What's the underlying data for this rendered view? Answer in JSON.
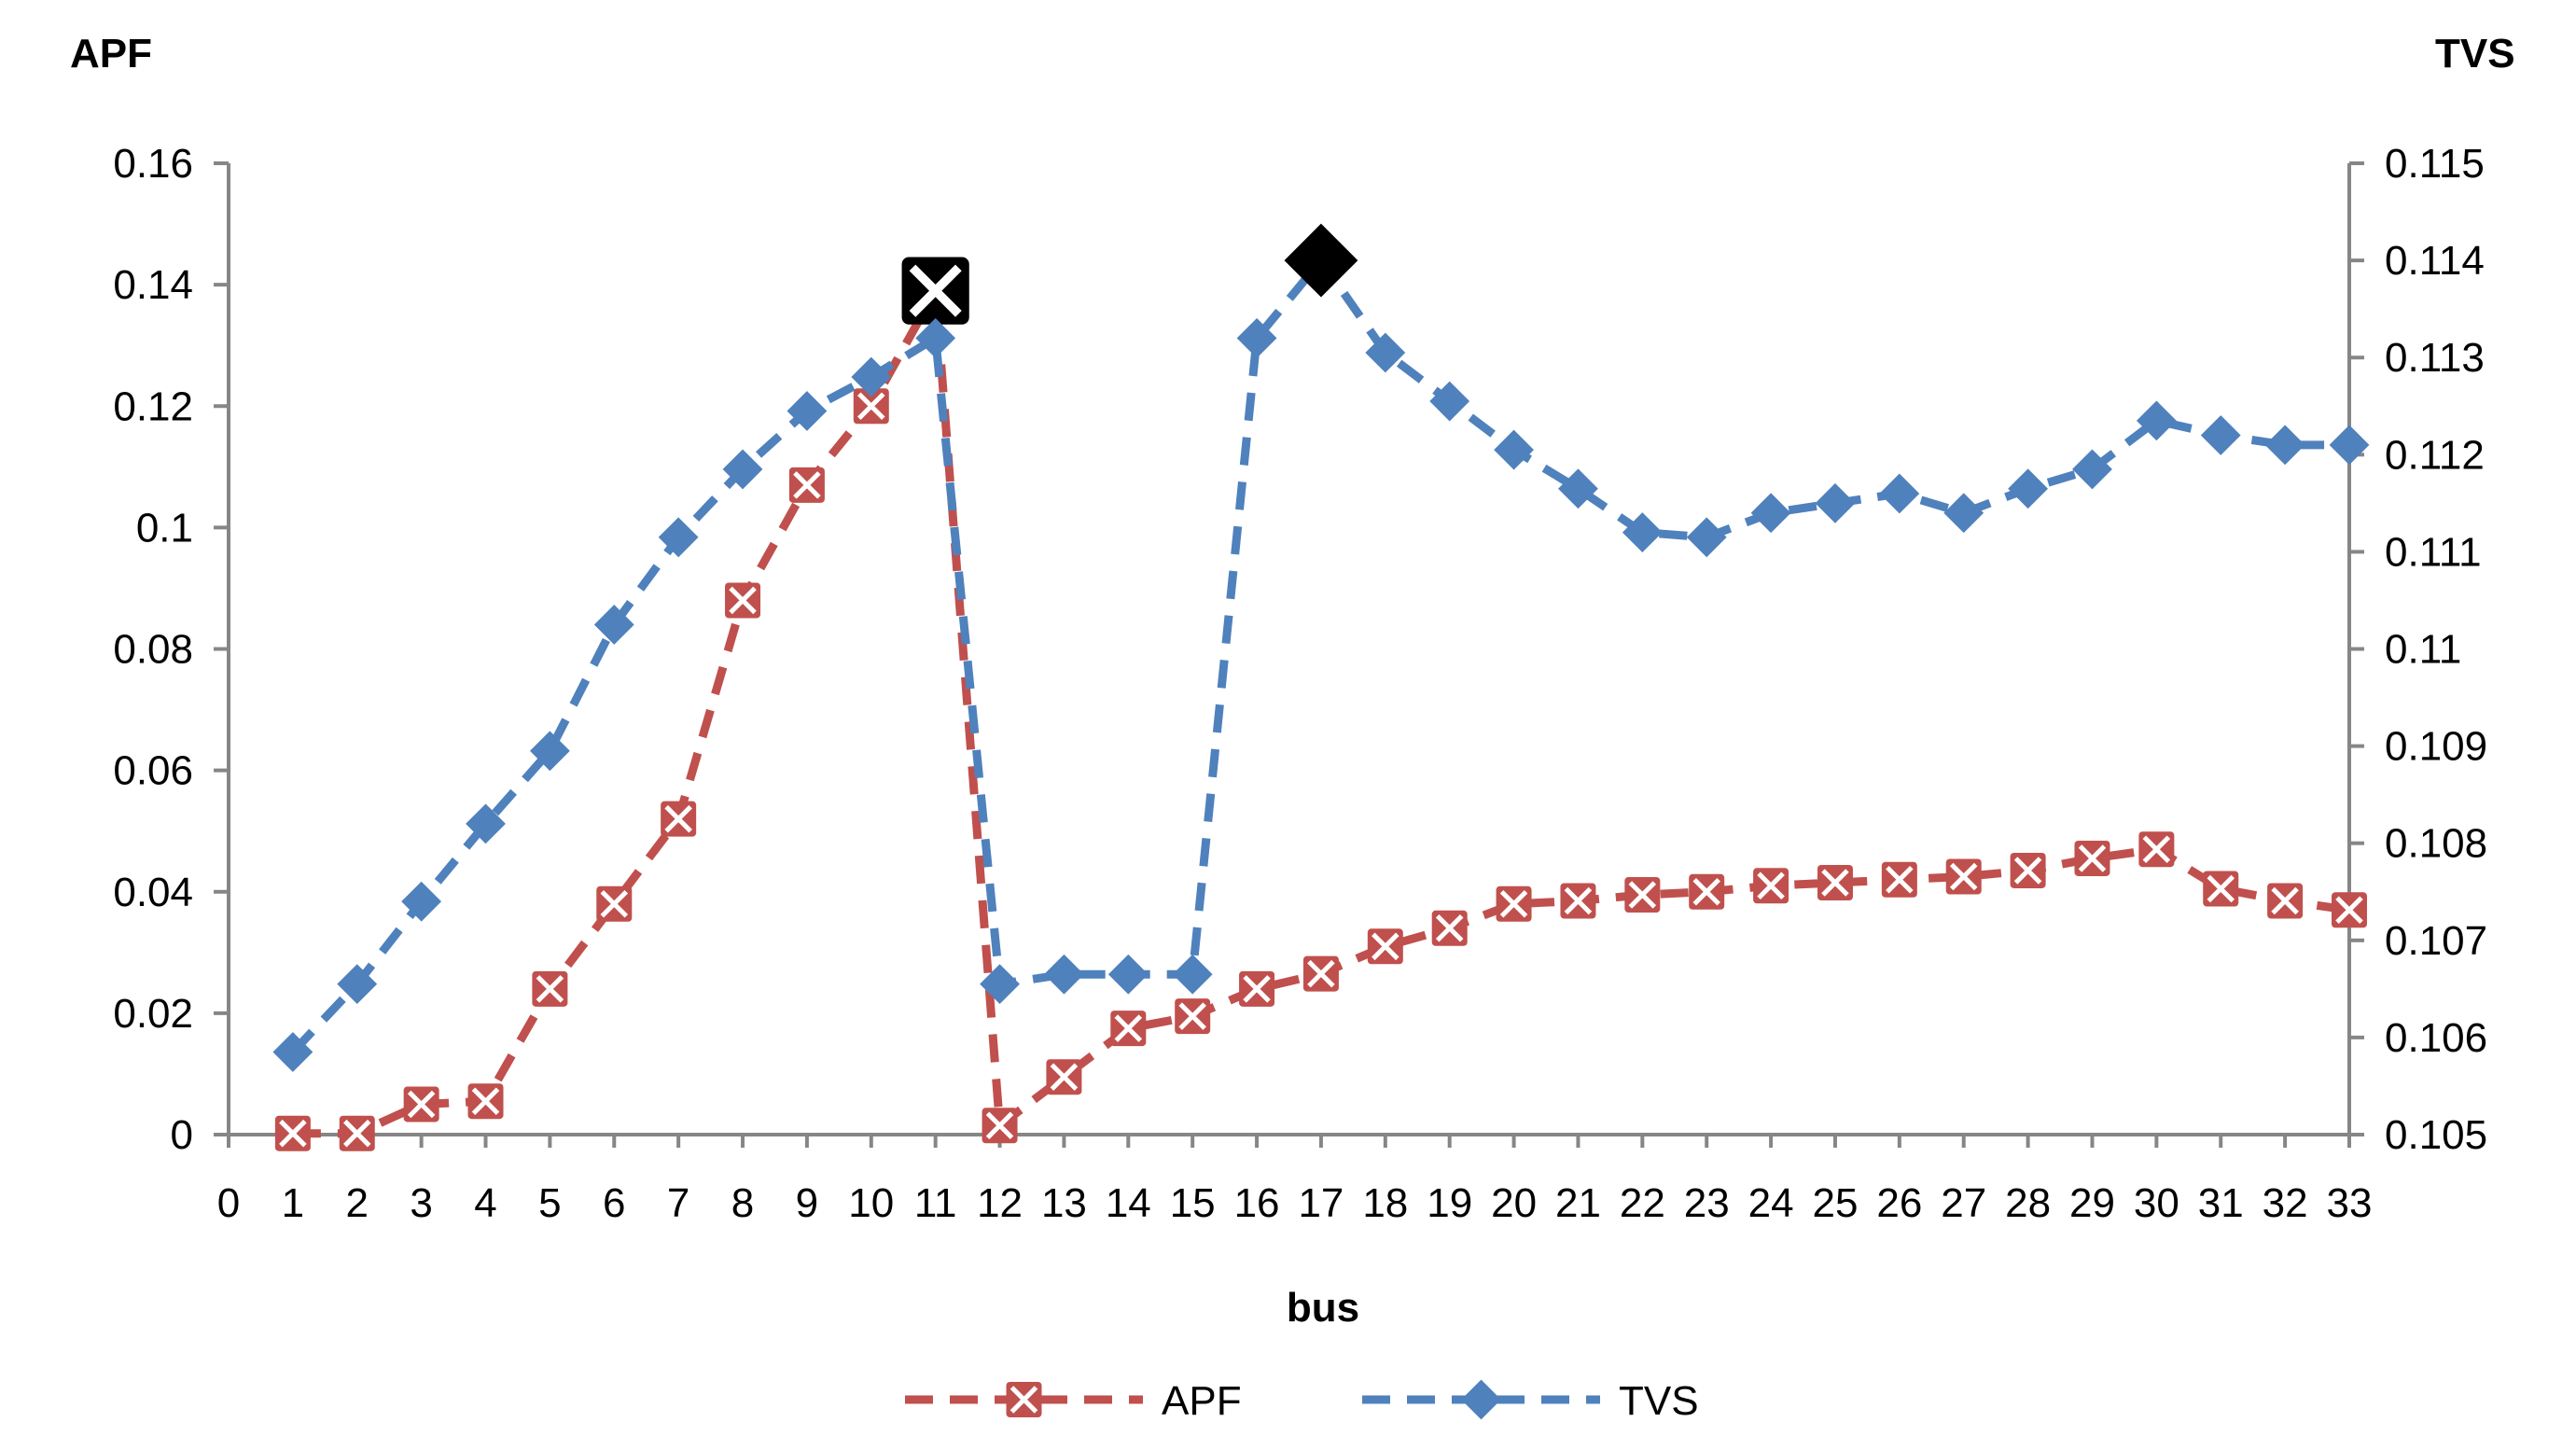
{
  "chart_data": {
    "type": "line",
    "title": "",
    "xlabel": "bus",
    "ylabel_left": "APF",
    "ylabel_right": "TVS",
    "x_ticks": [
      0,
      1,
      2,
      3,
      4,
      5,
      6,
      7,
      8,
      9,
      10,
      11,
      12,
      13,
      14,
      15,
      16,
      17,
      18,
      19,
      20,
      21,
      22,
      23,
      24,
      25,
      26,
      27,
      28,
      29,
      30,
      31,
      32,
      33
    ],
    "xlim": [
      0,
      33
    ],
    "ylim_left": [
      0,
      0.16
    ],
    "yticks_left": [
      "0",
      "0.02",
      "0.04",
      "0.06",
      "0.08",
      "0.1",
      "0.12",
      "0.14",
      "0.16"
    ],
    "ylim_right": [
      0.105,
      0.115
    ],
    "yticks_right": [
      "0.105",
      "0.106",
      "0.107",
      "0.108",
      "0.109",
      "0.11",
      "0.111",
      "0.112",
      "0.113",
      "0.114",
      "0.115"
    ],
    "grid": false,
    "legend_position": "bottom",
    "series": [
      {
        "name": "APF",
        "axis": "left",
        "color": "#C0504D",
        "marker": "x-square",
        "line_style": "dashed",
        "x": [
          1,
          2,
          3,
          4,
          5,
          6,
          7,
          8,
          9,
          10,
          11,
          12,
          13,
          14,
          15,
          16,
          17,
          18,
          19,
          20,
          21,
          22,
          23,
          24,
          25,
          26,
          27,
          28,
          29,
          30,
          31,
          32,
          33
        ],
        "values": [
          0.0002,
          0.0002,
          0.005,
          0.0055,
          0.024,
          0.038,
          0.052,
          0.088,
          0.107,
          0.12,
          0.139,
          0.0015,
          0.0095,
          0.0175,
          0.0195,
          0.024,
          0.0265,
          0.031,
          0.034,
          0.038,
          0.0385,
          0.0395,
          0.04,
          0.041,
          0.0415,
          0.042,
          0.0425,
          0.0435,
          0.0455,
          0.047,
          0.0405,
          0.0385,
          0.037
        ],
        "highlight_index": 10
      },
      {
        "name": "TVS",
        "axis": "right",
        "color": "#4F81BD",
        "marker": "diamond",
        "line_style": "dashed",
        "x": [
          1,
          2,
          3,
          4,
          5,
          6,
          7,
          8,
          9,
          10,
          11,
          12,
          13,
          14,
          15,
          16,
          17,
          18,
          19,
          20,
          21,
          22,
          23,
          24,
          25,
          26,
          27,
          28,
          29,
          30,
          31,
          32,
          33
        ],
        "values": [
          0.10585,
          0.10655,
          0.1074,
          0.1082,
          0.10895,
          0.11025,
          0.11115,
          0.11185,
          0.11245,
          0.1128,
          0.1132,
          0.10655,
          0.10665,
          0.10665,
          0.10665,
          0.1132,
          0.114,
          0.11305,
          0.11255,
          0.11205,
          0.11165,
          0.1112,
          0.11115,
          0.1114,
          0.1115,
          0.1116,
          0.1114,
          0.11165,
          0.11185,
          0.11235,
          0.1122,
          0.1121,
          0.1121
        ],
        "highlight_index": 16
      }
    ]
  }
}
